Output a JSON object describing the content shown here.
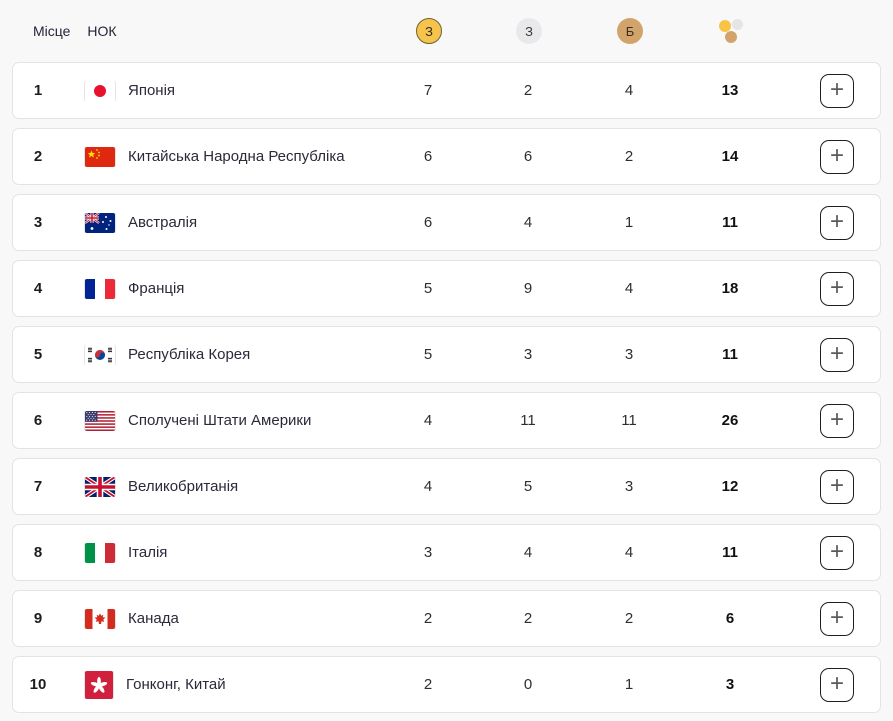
{
  "header": {
    "place_label": "Місце",
    "noc_label": "НОК",
    "gold_label": "З",
    "silver_label": "З",
    "bronze_label": "Б"
  },
  "icons": {
    "expand": "+",
    "gold_medal": "gold-medal-icon",
    "silver_medal": "silver-medal-icon",
    "bronze_medal": "bronze-medal-icon",
    "total_medals": "total-medals-icon"
  },
  "colors": {
    "gold": "#f6c34c",
    "silver": "#e9e9ec",
    "bronze": "#d2a46c",
    "page_background": "#f8f8f8",
    "card_border": "#e3e3e3"
  },
  "rows": [
    {
      "rank": "1",
      "noc": "Японія",
      "flag": "jp",
      "gold": "7",
      "silver": "2",
      "bronze": "4",
      "total": "13"
    },
    {
      "rank": "2",
      "noc": "Китайська Народна Республіка",
      "flag": "cn",
      "gold": "6",
      "silver": "6",
      "bronze": "2",
      "total": "14"
    },
    {
      "rank": "3",
      "noc": "Австралія",
      "flag": "au",
      "gold": "6",
      "silver": "4",
      "bronze": "1",
      "total": "11"
    },
    {
      "rank": "4",
      "noc": "Франція",
      "flag": "fr",
      "gold": "5",
      "silver": "9",
      "bronze": "4",
      "total": "18"
    },
    {
      "rank": "5",
      "noc": "Республіка Корея",
      "flag": "kr",
      "gold": "5",
      "silver": "3",
      "bronze": "3",
      "total": "11"
    },
    {
      "rank": "6",
      "noc": "Сполучені Штати Америки",
      "flag": "us",
      "gold": "4",
      "silver": "11",
      "bronze": "11",
      "total": "26"
    },
    {
      "rank": "7",
      "noc": "Великобританія",
      "flag": "gb",
      "gold": "4",
      "silver": "5",
      "bronze": "3",
      "total": "12"
    },
    {
      "rank": "8",
      "noc": "Італія",
      "flag": "it",
      "gold": "3",
      "silver": "4",
      "bronze": "4",
      "total": "11"
    },
    {
      "rank": "9",
      "noc": "Канада",
      "flag": "ca",
      "gold": "2",
      "silver": "2",
      "bronze": "2",
      "total": "6"
    },
    {
      "rank": "10",
      "noc": "Гонконг, Китай",
      "flag": "hk",
      "gold": "2",
      "silver": "0",
      "bronze": "1",
      "total": "3"
    }
  ]
}
